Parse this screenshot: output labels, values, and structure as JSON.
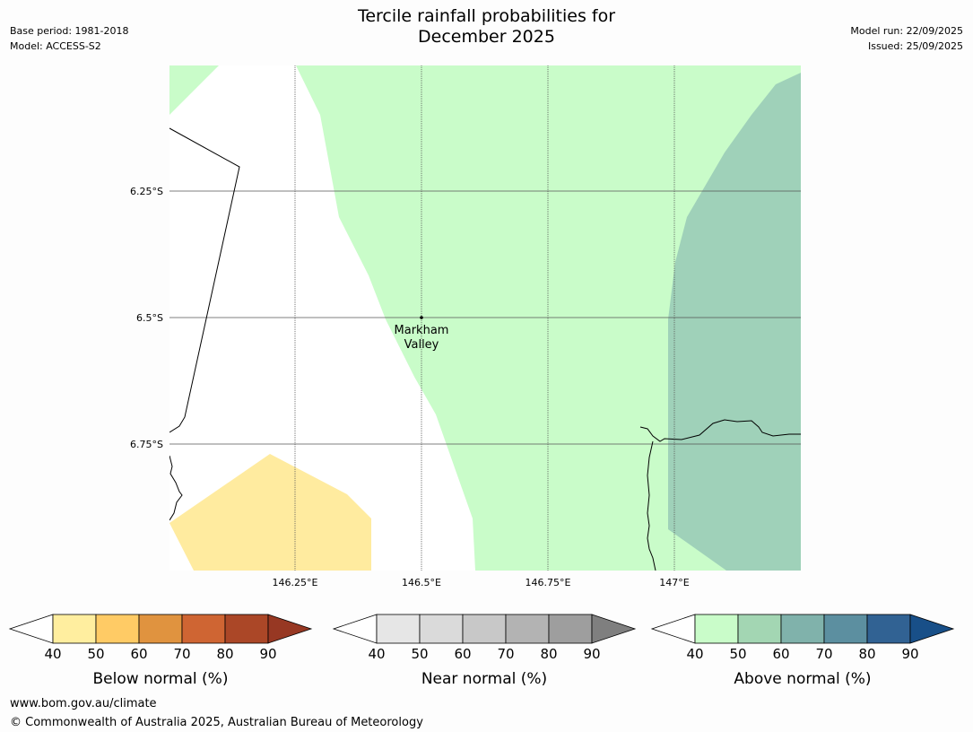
{
  "header": {
    "title_line1": "Tercile rainfall probabilities for",
    "title_line2": "December 2025",
    "base_period": "Base period: 1981-2018",
    "model": "Model: ACCESS-S2",
    "model_run": "Model run: 22/09/2025",
    "issued": "Issued: 25/09/2025"
  },
  "map": {
    "lat_labels": [
      "6.25°S",
      "6.5°S",
      "6.75°S"
    ],
    "lon_labels": [
      "146.25°E",
      "146.5°E",
      "146.75°E",
      "147°E"
    ],
    "place_label_line1": "Markham",
    "place_label_line2": "Valley",
    "colors": {
      "above_40_50": "#c9fcc9",
      "above_50_60": "#9fd1b9",
      "below_40_50": "#ffeb9f"
    }
  },
  "colorbars": [
    {
      "label": "Below normal (%)",
      "ticks": [
        "40",
        "50",
        "60",
        "70",
        "80",
        "90"
      ],
      "colors": [
        "#ffee9f",
        "#ffcb65",
        "#e0933f",
        "#cf6533",
        "#ab4727"
      ],
      "arrow": "#973823"
    },
    {
      "label": "Near normal (%)",
      "ticks": [
        "40",
        "50",
        "60",
        "70",
        "80",
        "90"
      ],
      "colors": [
        "#e6e6e6",
        "#dadada",
        "#c8c8c8",
        "#b3b3b3",
        "#9e9e9e"
      ],
      "arrow": "#7f7f7f"
    },
    {
      "label": "Above normal (%)",
      "ticks": [
        "40",
        "50",
        "60",
        "70",
        "80",
        "90"
      ],
      "colors": [
        "#c9fcc9",
        "#a3d6b3",
        "#80b2ab",
        "#5c8fa0",
        "#316293"
      ],
      "arrow": "#184f88"
    }
  ],
  "footer": {
    "website": "www.bom.gov.au/climate",
    "copyright": "© Commonwealth of Australia 2025, Australian Bureau of Meteorology"
  }
}
